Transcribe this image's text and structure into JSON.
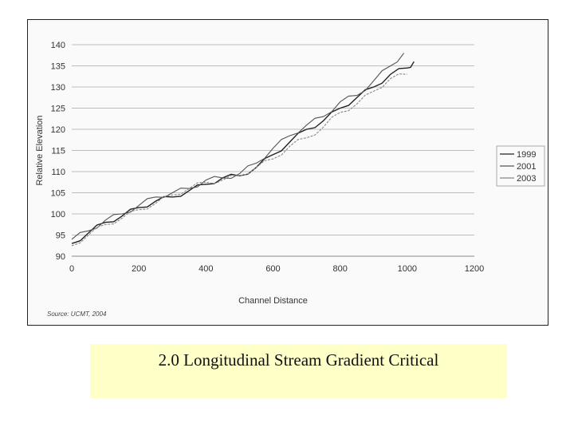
{
  "caption": {
    "text": "2.0 Longitudinal Stream Gradient Critical"
  },
  "source_note": "Source: UCMT, 2004",
  "chart_data": {
    "type": "line",
    "xlabel": "Channel Distance",
    "ylabel": "Relative Elevation",
    "xlim": [
      0,
      1200
    ],
    "ylim": [
      90,
      140
    ],
    "xticks": [
      "0",
      "200",
      "400",
      "600",
      "800",
      "1000",
      "1200"
    ],
    "yticks": [
      "90",
      "95",
      "100",
      "105",
      "110",
      "115",
      "120",
      "125",
      "130",
      "135",
      "140"
    ],
    "grid": "horizontal",
    "legend_position": "right",
    "series": [
      {
        "name": "1999",
        "color": "#222222",
        "x": [
          0,
          50,
          100,
          150,
          200,
          250,
          300,
          350,
          400,
          450,
          500,
          550,
          600,
          650,
          700,
          750,
          800,
          850,
          900,
          950,
          1000,
          1020
        ],
        "y": [
          93,
          95.5,
          98,
          99.5,
          101.5,
          103,
          104,
          105.5,
          107,
          108.5,
          109,
          111,
          114,
          117,
          120,
          122,
          125,
          127.5,
          130,
          133,
          134.5,
          136
        ]
      },
      {
        "name": "2001",
        "color": "#555555",
        "x": [
          0,
          50,
          100,
          150,
          200,
          250,
          300,
          350,
          400,
          450,
          500,
          550,
          600,
          650,
          700,
          750,
          800,
          850,
          900,
          950,
          990
        ],
        "y": [
          94,
          96,
          98.5,
          100,
          102,
          104,
          105,
          106,
          108,
          108.5,
          109.5,
          112,
          115.5,
          118.5,
          121,
          123,
          126.5,
          128,
          131.5,
          135,
          138
        ]
      },
      {
        "name": "2003",
        "color": "#888888",
        "x": [
          0,
          50,
          100,
          150,
          200,
          250,
          300,
          350,
          400,
          450,
          500,
          550,
          600,
          650,
          700,
          750,
          800,
          850,
          900,
          950,
          1000
        ],
        "y": [
          92.5,
          95,
          97.5,
          99,
          101,
          102.5,
          104.5,
          106,
          107.5,
          108,
          109,
          111,
          113,
          116,
          118,
          120.5,
          124,
          126,
          129,
          132,
          133
        ]
      }
    ]
  }
}
